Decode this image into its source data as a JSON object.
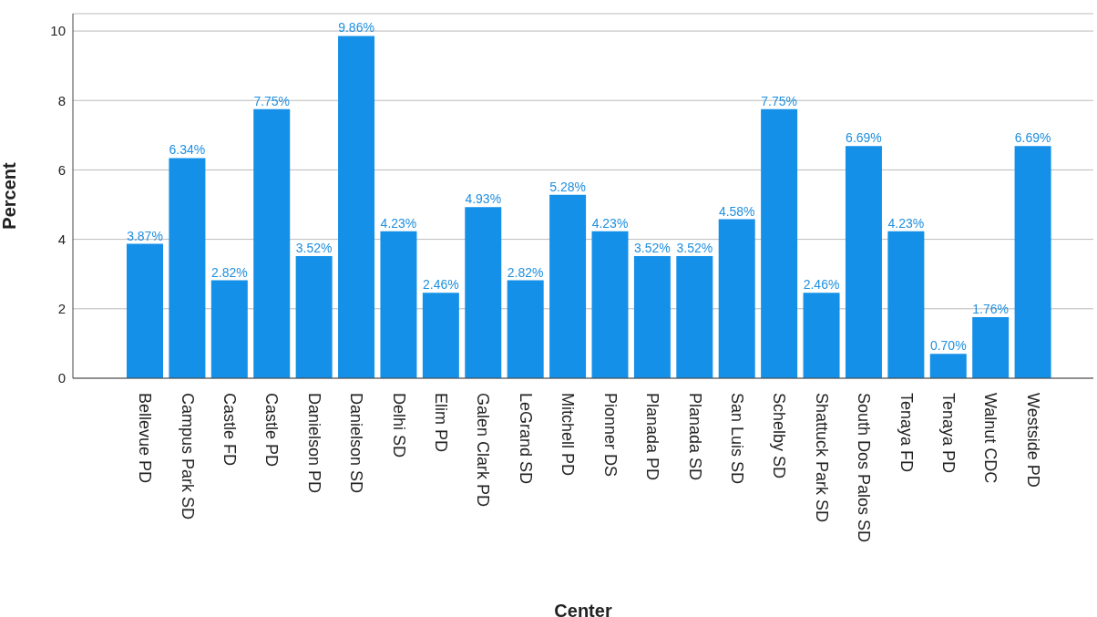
{
  "chart_data": {
    "type": "bar",
    "xlabel": "Center",
    "ylabel": "Percent",
    "categories": [
      "Bellevue PD",
      "Campus Park SD",
      "Castle FD",
      "Castle PD",
      "Danielson PD",
      "Danielson SD",
      "Delhi SD",
      "Elim PD",
      "Galen Clark PD",
      "LeGrand SD",
      "Mitchell PD",
      "Pionner DS",
      "Planada PD",
      "Planada SD",
      "San Luis SD",
      "Schelby SD",
      "Shattuck Park SD",
      "South Dos Palos SD",
      "Tenaya FD",
      "Tenaya PD",
      "Walnut CDC",
      "Westside PD"
    ],
    "values": [
      3.87,
      6.34,
      2.82,
      7.75,
      3.52,
      9.86,
      4.23,
      2.46,
      4.93,
      2.82,
      5.28,
      4.23,
      3.52,
      3.52,
      4.58,
      7.75,
      2.46,
      6.69,
      4.23,
      0.7,
      1.76,
      6.69
    ],
    "value_labels": [
      "3.87%",
      "6.34%",
      "2.82%",
      "7.75%",
      "3.52%",
      "9.86%",
      "4.23%",
      "2.46%",
      "4.93%",
      "2.82%",
      "5.28%",
      "4.23%",
      "3.52%",
      "3.52%",
      "4.58%",
      "7.75%",
      "2.46%",
      "6.69%",
      "4.23%",
      "0.70%",
      "1.76%",
      "6.69%"
    ],
    "color": "#1590e8",
    "ylim": [
      0,
      10.5
    ],
    "yticks": [
      0,
      2,
      4,
      6,
      8,
      10
    ],
    "grid": "y",
    "legend": false
  }
}
